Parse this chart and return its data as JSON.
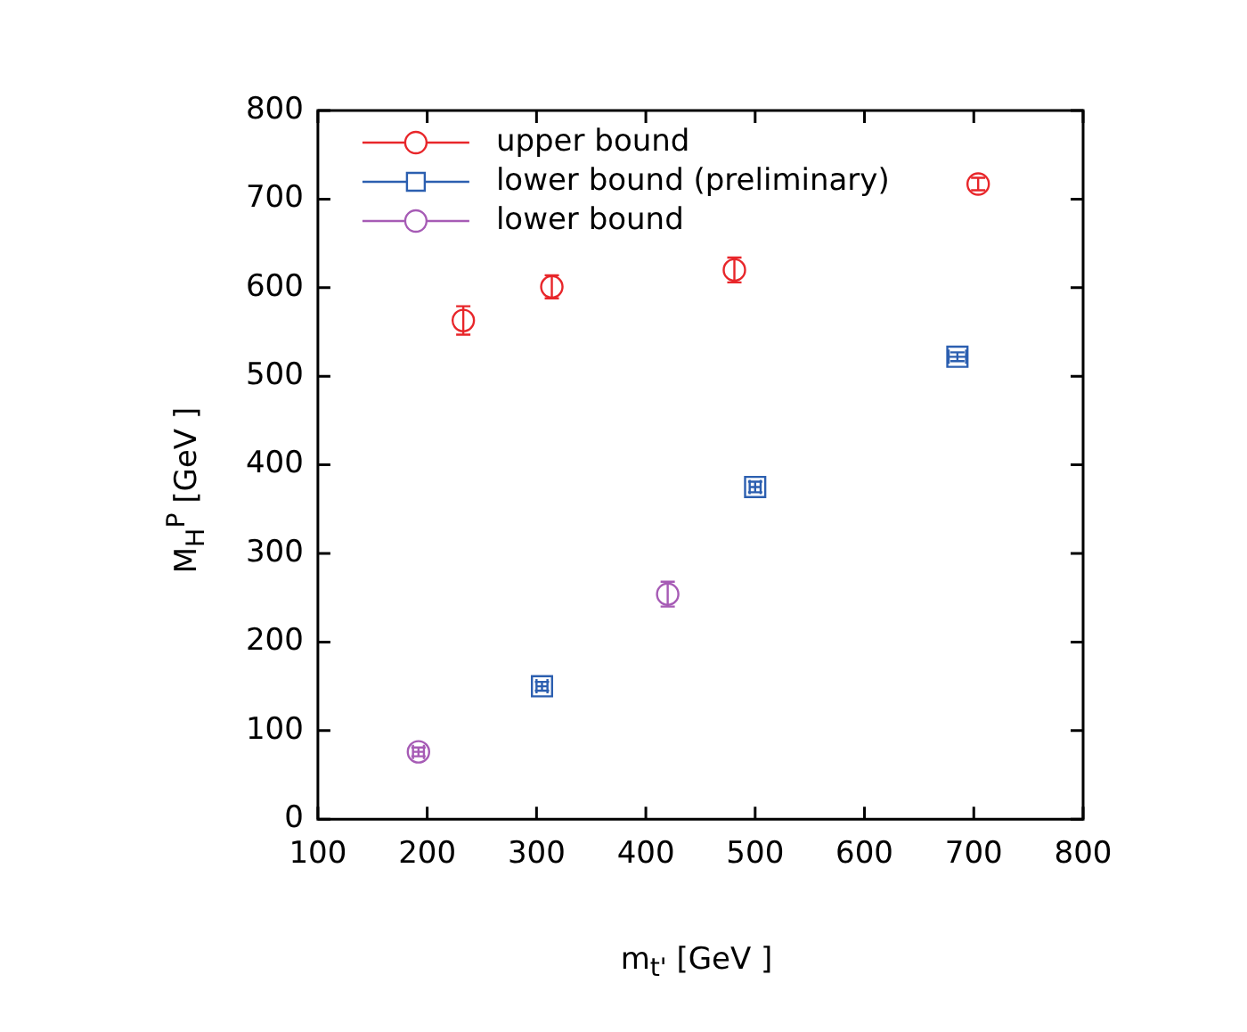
{
  "chart_data": {
    "type": "scatter",
    "xlabel": "m$_{t'}$ [GeV ]",
    "ylabel": "M$_{H}$$^{P}$ [GeV ]",
    "xlim": [
      100,
      800
    ],
    "xticks": [
      100,
      200,
      300,
      400,
      500,
      600,
      700,
      800
    ],
    "ylim": [
      0,
      800
    ],
    "yticks": [
      0,
      100,
      200,
      300,
      400,
      500,
      600,
      700,
      800
    ],
    "grid": false,
    "legend": "top left",
    "series": [
      {
        "name": "upper bound",
        "color": "#e8262a",
        "marker": "circle",
        "x": [
          233,
          314,
          481,
          704
        ],
        "values": [
          563,
          601,
          620,
          717
        ],
        "errors": [
          16,
          13,
          14,
          7
        ],
        "xerrors": [
          null,
          null,
          null,
          null
        ]
      },
      {
        "name": "lower bound (preliminary)",
        "color": "#2c5fb0",
        "marker": "square",
        "x": [
          305,
          500,
          685
        ],
        "values": [
          150,
          375,
          522
        ],
        "errors": [
          5,
          6,
          5
        ],
        "xerrors": [
          5,
          5,
          8
        ]
      },
      {
        "name": "lower bound",
        "color": "#a65bb5",
        "marker": "circle",
        "x": [
          192,
          420
        ],
        "values": [
          76,
          254
        ],
        "errors": [
          5,
          14
        ],
        "xerrors": [
          5,
          null
        ]
      }
    ]
  }
}
